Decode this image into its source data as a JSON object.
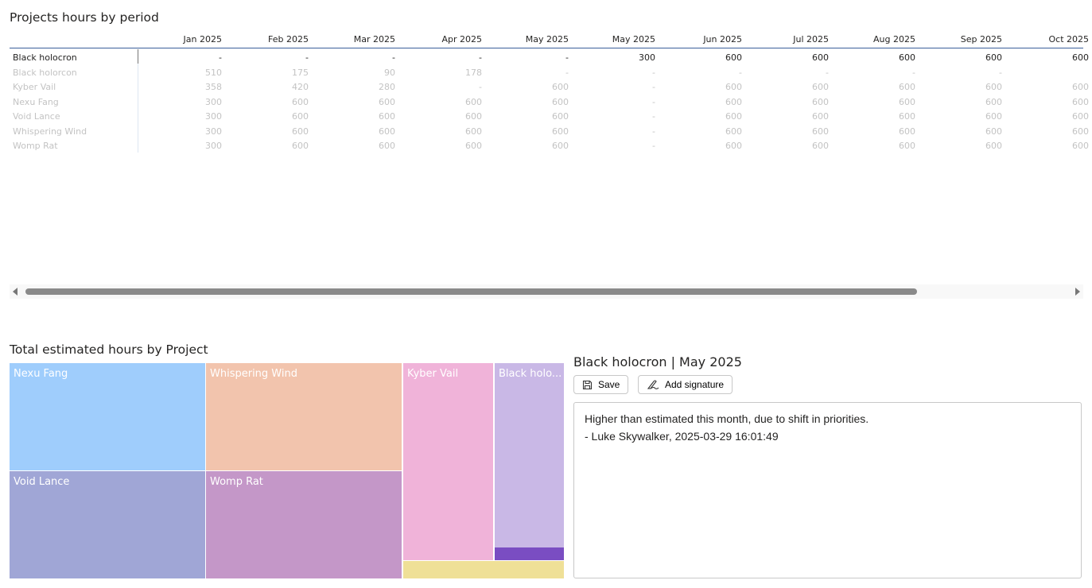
{
  "matrix": {
    "title": "Projects hours by period",
    "columns": [
      "Jan 2025",
      "Feb 2025",
      "Mar 2025",
      "Apr 2025",
      "May 2025",
      "May 2025",
      "Jun 2025",
      "Jul 2025",
      "Aug 2025",
      "Sep 2025",
      "Oct 2025"
    ],
    "rows": [
      {
        "label": "Black holocron",
        "selected": true,
        "values": [
          "-",
          "-",
          "-",
          "-",
          "-",
          "300",
          "600",
          "600",
          "600",
          "600",
          "600"
        ]
      },
      {
        "label": "Black holorcon",
        "values": [
          "510",
          "175",
          "90",
          "178",
          "-",
          "-",
          "-",
          "-",
          "-",
          "-",
          ""
        ]
      },
      {
        "label": "Kyber Vail",
        "values": [
          "358",
          "420",
          "280",
          "-",
          "600",
          "-",
          "600",
          "600",
          "600",
          "600",
          "600"
        ]
      },
      {
        "label": "Nexu Fang",
        "values": [
          "300",
          "600",
          "600",
          "600",
          "600",
          "-",
          "600",
          "600",
          "600",
          "600",
          "600"
        ]
      },
      {
        "label": "Void Lance",
        "values": [
          "300",
          "600",
          "600",
          "600",
          "600",
          "-",
          "600",
          "600",
          "600",
          "600",
          "600"
        ]
      },
      {
        "label": "Whispering Wind",
        "values": [
          "300",
          "600",
          "600",
          "600",
          "600",
          "-",
          "600",
          "600",
          "600",
          "600",
          "600"
        ]
      },
      {
        "label": "Womp Rat",
        "values": [
          "300",
          "600",
          "600",
          "600",
          "600",
          "-",
          "600",
          "600",
          "600",
          "600",
          "600"
        ]
      }
    ]
  },
  "treemap": {
    "title": "Total estimated hours by Project",
    "tiles": [
      {
        "label": "Nexu Fang",
        "color": "#9fcdfc"
      },
      {
        "label": "Whispering Wind",
        "color": "#f2c4ad"
      },
      {
        "label": "Void Lance",
        "color": "#a0a6d6"
      },
      {
        "label": "Womp Rat",
        "color": "#c497c8"
      },
      {
        "label": "Kyber Vail",
        "color": "#f0b3d9"
      },
      {
        "label": "Black holo...",
        "color": "#c9b8e6"
      },
      {
        "label": "",
        "color": "#7a4dc2"
      },
      {
        "label": "",
        "color": "#efe097"
      }
    ]
  },
  "note": {
    "title": "Black holocron | May 2025",
    "save_label": "Save",
    "signature_label": "Add signature",
    "text": "Higher than estimated this month, due to shift in priorities.\n- Luke Skywalker, 2025-03-29 16:01:49"
  }
}
